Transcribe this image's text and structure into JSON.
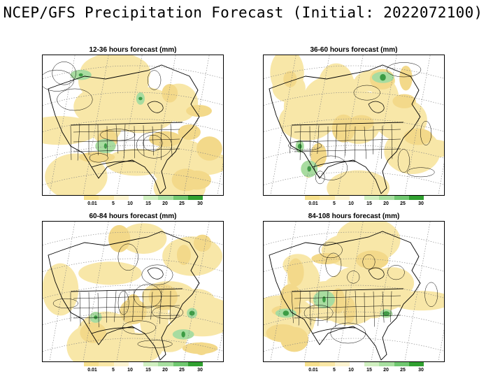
{
  "title": "NCEP/GFS Precipitation Forecast (Initial: 2022072100)",
  "legend": {
    "labels": [
      "0.01",
      "5",
      "10",
      "15",
      "20",
      "25",
      "30"
    ],
    "colors": [
      "#f6e08c",
      "#fae8a6",
      "#fdf4d0",
      "#ffffff",
      "#d0f0c0",
      "#a8e0a0",
      "#70c870",
      "#30a030"
    ]
  },
  "panels": [
    {
      "title": "12-36 hours forecast (mm)"
    },
    {
      "title": "36-60 hours forecast (mm)"
    },
    {
      "title": "60-84 hours forecast (mm)"
    },
    {
      "title": "84-108 hours forecast (mm)"
    }
  ],
  "colors": {
    "precip_light": "#f8e7a8",
    "precip_mid": "#f3d98a",
    "precip_heavy": "#a8dca0",
    "precip_max": "#3c9c44",
    "map_lines": "#000000",
    "grid_lines": "#808080"
  }
}
